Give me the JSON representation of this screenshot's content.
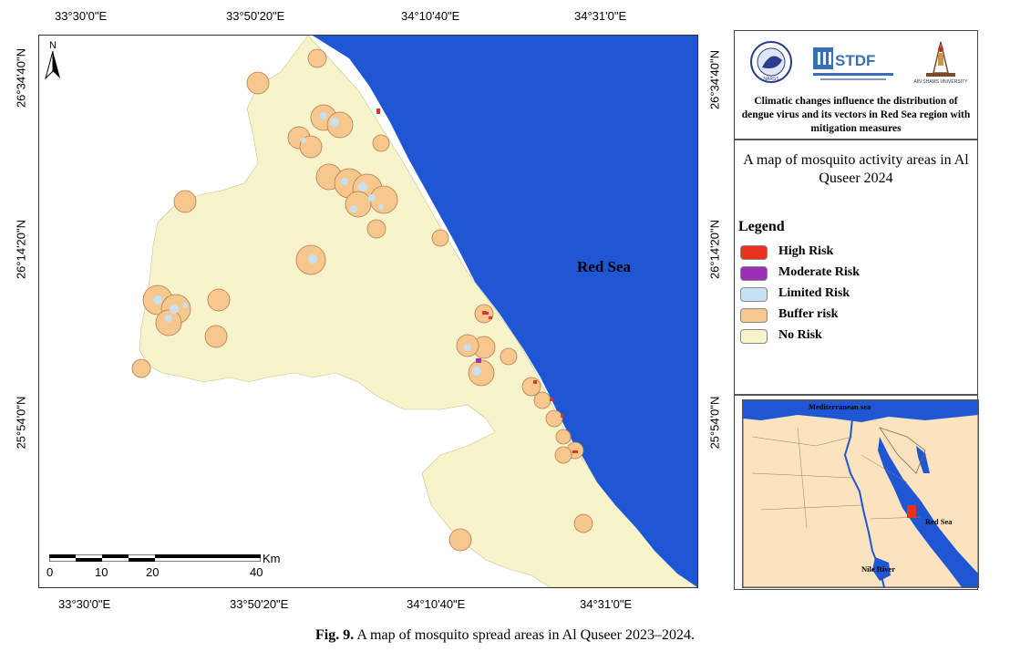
{
  "coordinates": {
    "top": [
      "33°30'0\"E",
      "33°50'20\"E",
      "34°10'40\"E",
      "34°31'0\"E"
    ],
    "bottom": [
      "33°30'0\"E",
      "33°50'20\"E",
      "34°10'40\"E",
      "34°31'0\"E"
    ],
    "left": [
      "26°34'40\"N",
      "26°14'20\"N",
      "25°54'0\"N"
    ],
    "right": [
      "26°34'40\"N",
      "26°14'20\"N",
      "25°54'0\"N"
    ]
  },
  "map": {
    "sea_label": "Red Sea",
    "north_label": "N",
    "scale": {
      "unit": "Km",
      "ticks": [
        "0",
        "10",
        "20",
        "40"
      ]
    }
  },
  "panel": {
    "logos": [
      {
        "name": "narss-logo",
        "text": "NARSS"
      },
      {
        "name": "stdf-logo",
        "text": "STDF",
        "subtext": "هيئة تمويل العلوم والتكنولوجيا والابتكار"
      },
      {
        "name": "ain-shams-logo",
        "text": "AIN SHAMS UNIVERSITY"
      }
    ],
    "project_title": "Climatic changes influence the distribution of dengue virus and its vectors in Red Sea region with mitigation measures",
    "map_title": "A map of mosquito activity areas in Al Quseer 2024",
    "legend_title": "Legend",
    "legend": [
      {
        "label": "High Risk",
        "color": "#e8321e"
      },
      {
        "label": "Moderate Risk",
        "color": "#9b2fb8"
      },
      {
        "label": "Limited Risk",
        "color": "#c6e1f2"
      },
      {
        "label": "Buffer risk",
        "color": "#f7c88d"
      },
      {
        "label": "No Risk",
        "color": "#f7f4cc"
      }
    ],
    "inset": {
      "mediterranean": "Mediterranean sea",
      "red_sea": "Red Sea",
      "nile": "Nile River"
    }
  },
  "colors": {
    "sea": "#1f56d4",
    "land": "#f7f4cc",
    "buffer": "#f7c88d",
    "buffer_stroke": "#b77a55",
    "limited": "#c6e1f2",
    "high": "#e8321e",
    "moderate": "#9b2fb8",
    "egypt": "#fbe3bf"
  },
  "caption": {
    "label": "Fig. 9.",
    "text": "A map of mosquito spread areas in Al Quseer 2023–2024."
  }
}
